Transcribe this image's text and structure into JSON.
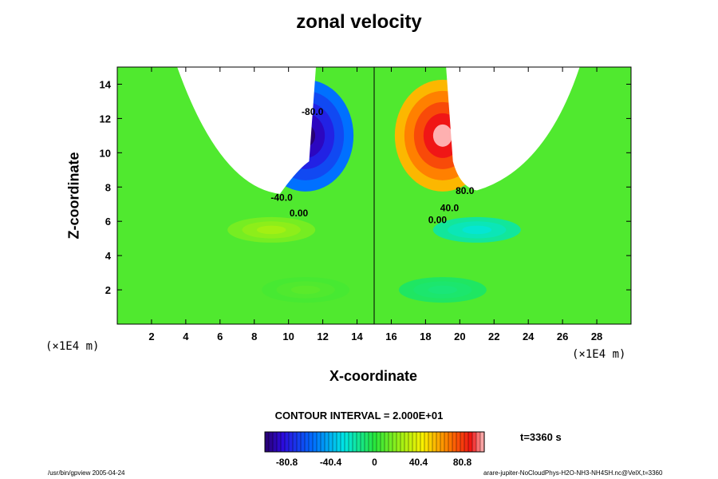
{
  "chart_data": {
    "type": "heatmap",
    "title": "zonal velocity",
    "xlabel": "X-coordinate",
    "ylabel": "Z-coordinate",
    "x_unit": "(×1E4 m)",
    "xlim": [
      0,
      30
    ],
    "ylim": [
      0,
      15
    ],
    "x_ticks": [
      2,
      4,
      6,
      8,
      10,
      12,
      14,
      16,
      18,
      20,
      22,
      24,
      26,
      28
    ],
    "y_ticks": [
      2,
      4,
      6,
      8,
      10,
      12,
      14
    ],
    "contour_interval_text": "CONTOUR INTERVAL = 2.000E+01",
    "contour_labels": [
      {
        "text": "-80.0",
        "x": 11.4,
        "z": 12.2
      },
      {
        "text": "-40.0",
        "x": 9.6,
        "z": 7.2
      },
      {
        "text": "0.00",
        "x": 10.6,
        "z": 6.3
      },
      {
        "text": "80.0",
        "x": 20.3,
        "z": 7.6
      },
      {
        "text": "40.0",
        "x": 19.4,
        "z": 6.6
      },
      {
        "text": "0.00",
        "x": 18.7,
        "z": 5.9
      }
    ],
    "colorbar": {
      "range": [
        -101,
        101
      ],
      "ticks": [
        "-80.8",
        "-40.4",
        "0",
        "40.4",
        "80.8"
      ],
      "tick_values": [
        -80.8,
        -40.4,
        0,
        40.4,
        80.8
      ]
    },
    "features": [
      {
        "description_value": -100,
        "x": 11,
        "z": 11
      },
      {
        "description_value": 100,
        "x": 19,
        "z": 11
      },
      {
        "description_value": 25,
        "x": 9,
        "z": 5.5
      },
      {
        "description_value": -25,
        "x": 21,
        "z": 5.5
      },
      {
        "description_value": 10,
        "x": 11,
        "z": 2
      },
      {
        "description_value": -10,
        "x": 19,
        "z": 2
      }
    ],
    "time_text": "t=3360 s"
  },
  "footer": {
    "left": "/usr/bin/gpview 2005-04-24",
    "right": "arare-jupiter-NoCloudPhys-H2O-NH3-NH4SH.nc@VelX,t=3360"
  }
}
